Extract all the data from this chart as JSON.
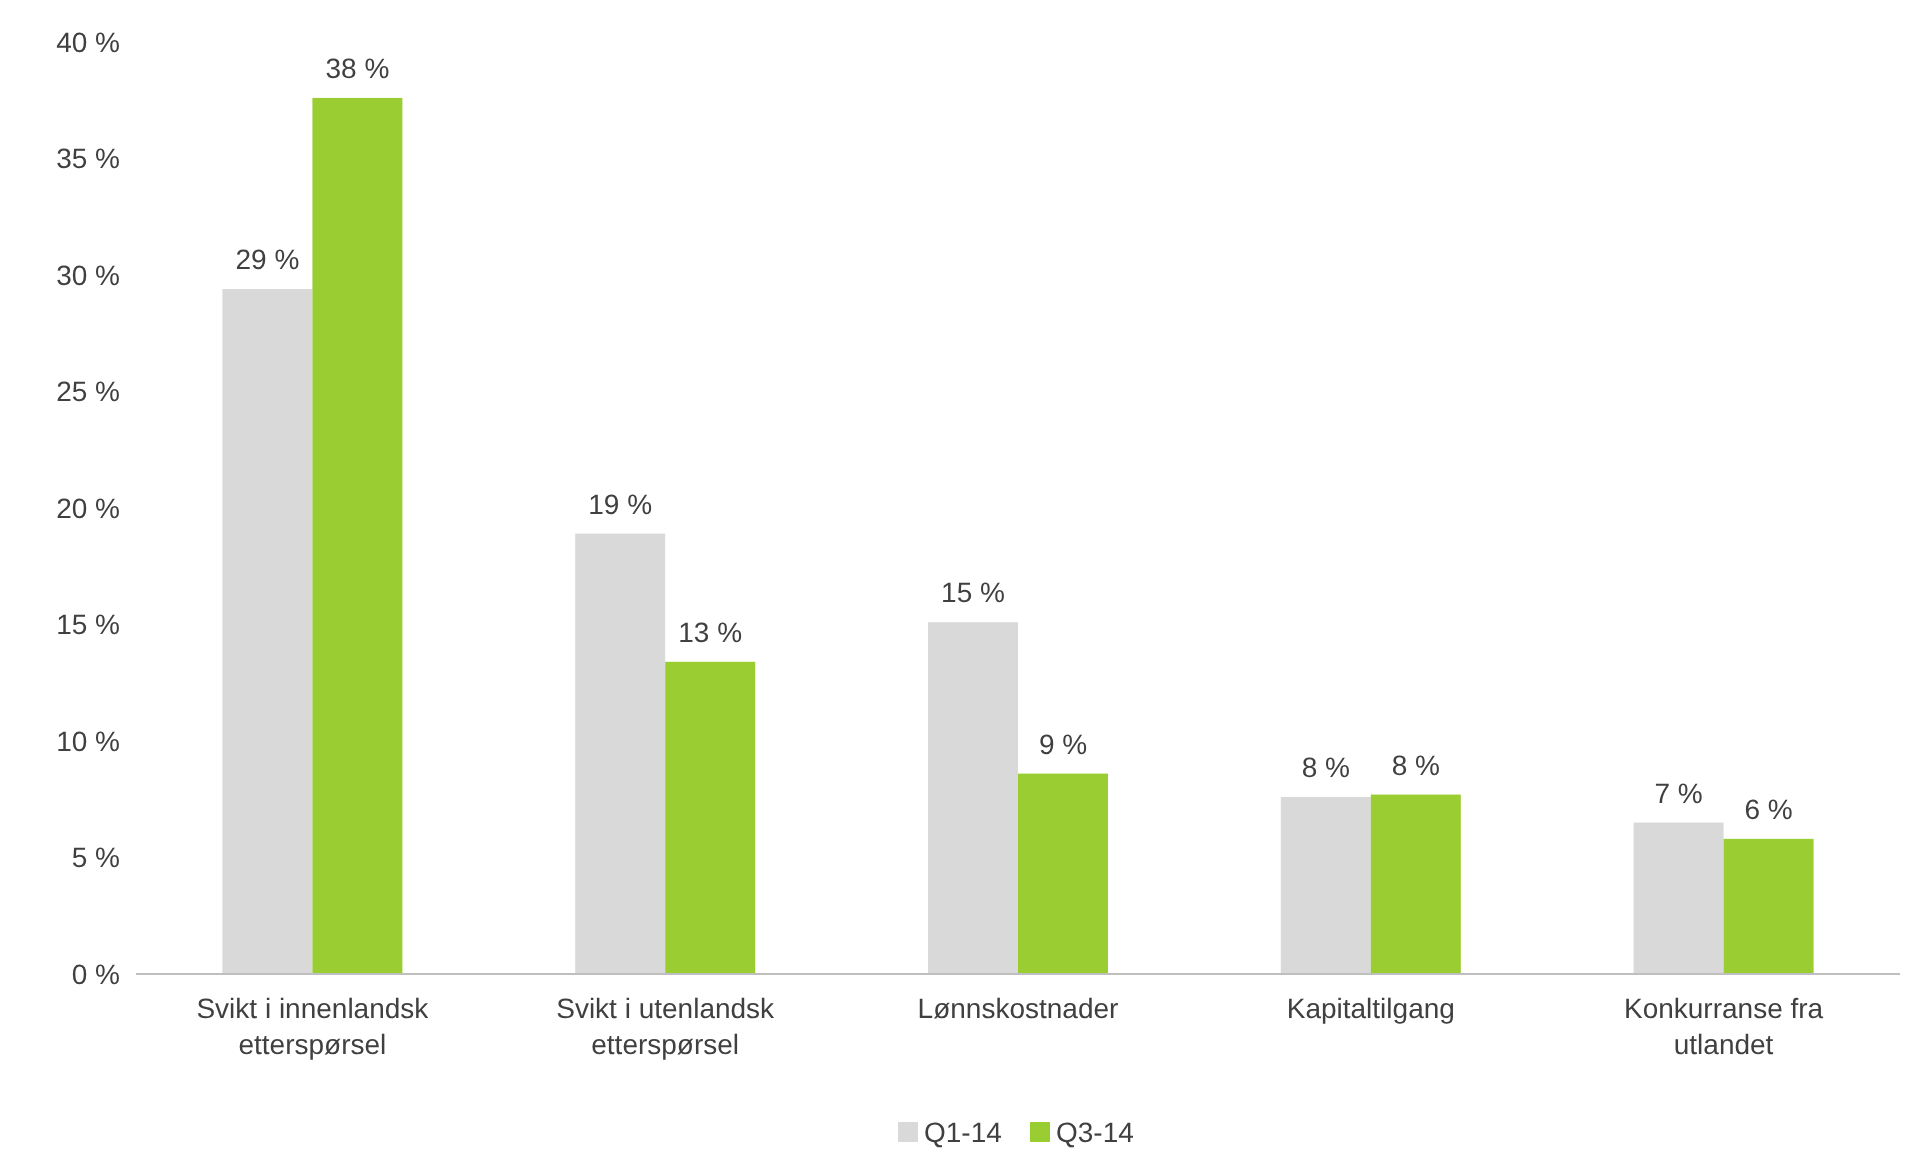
{
  "chart_data": {
    "type": "bar",
    "categories": [
      "Svikt i innenlandsk etterspørsel",
      "Svikt i utenlandsk etterspørsel",
      "Lønnskostnader",
      "Kapitaltilgang",
      "Konkurranse fra utlandet"
    ],
    "series": [
      {
        "name": "Q1-14",
        "color": "#d9d9d9",
        "values": [
          29.4,
          18.9,
          15.1,
          7.6,
          6.5
        ],
        "value_labels": [
          "29 %",
          "19 %",
          "15 %",
          "8 %",
          "7 %"
        ]
      },
      {
        "name": "Q3-14",
        "color": "#9acd32",
        "values": [
          37.6,
          13.4,
          8.6,
          7.7,
          5.8
        ],
        "value_labels": [
          "38 %",
          "13 %",
          "9 %",
          "8 %",
          "6 %"
        ]
      }
    ],
    "ylim": [
      0,
      40
    ],
    "yticks": [
      {
        "value": 0,
        "label": "0 %"
      },
      {
        "value": 5,
        "label": "5 %"
      },
      {
        "value": 10,
        "label": "10 %"
      },
      {
        "value": 15,
        "label": "15 %"
      },
      {
        "value": 20,
        "label": "20 %"
      },
      {
        "value": 25,
        "label": "25 %"
      },
      {
        "value": 30,
        "label": "30 %"
      },
      {
        "value": 35,
        "label": "35 %"
      },
      {
        "value": 40,
        "label": "40 %"
      }
    ],
    "grid": false,
    "legend": "bottom"
  }
}
